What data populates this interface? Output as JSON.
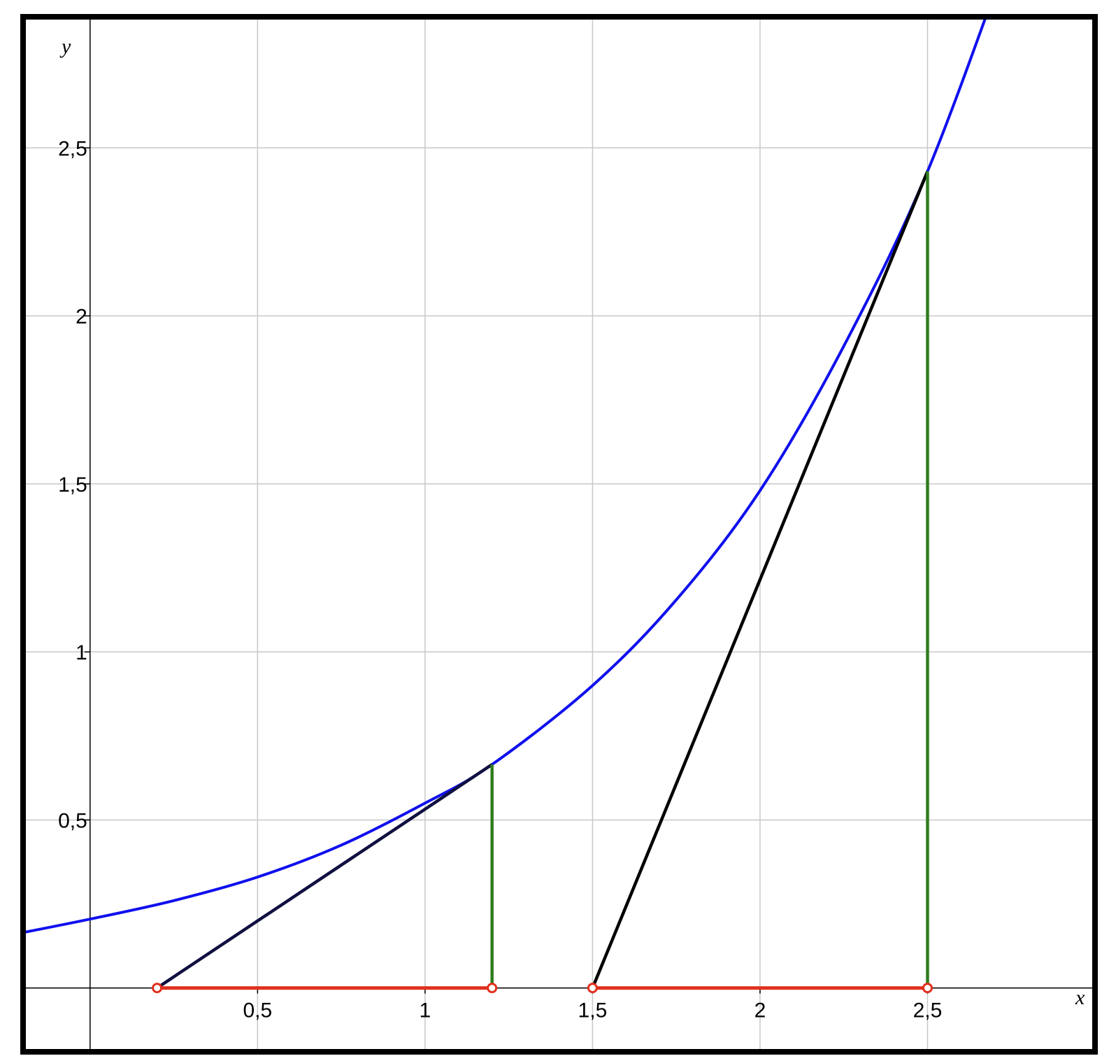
{
  "chart_data": {
    "type": "line",
    "title": "",
    "xlabel": "x",
    "ylabel": "y",
    "xlim": [
      -0.2,
      3.0
    ],
    "ylim": [
      -0.19,
      2.89
    ],
    "grid": true,
    "x_ticks": [
      0.5,
      1,
      1.5,
      2,
      2.5
    ],
    "y_ticks": [
      0.5,
      1,
      1.5,
      2,
      2.5
    ],
    "x_tick_labels": [
      "0,5",
      "1",
      "1,5",
      "2",
      "2,5"
    ],
    "y_tick_labels": [
      "0,5",
      "1",
      "1,5",
      "2",
      "2,5"
    ],
    "colors": {
      "curve": "#1010ee",
      "tangent_1": "#101040",
      "tangent_2": "#000000",
      "verticals": "#2e7d1e",
      "segments": "#e0301e",
      "grid": "#c8c8c8",
      "frame": "#000000"
    },
    "curve": {
      "x": [
        -0.2,
        0.0,
        0.25,
        0.5,
        0.75,
        1.0,
        1.2,
        1.5,
        1.75,
        2.0,
        2.25,
        2.5,
        2.75
      ],
      "y": [
        0.165,
        0.205,
        0.26,
        0.33,
        0.425,
        0.55,
        0.665,
        0.9,
        1.155,
        1.48,
        1.91,
        2.43,
        3.1
      ]
    },
    "tangents": [
      {
        "x": [
          0.2,
          1.2
        ],
        "y": [
          0.0,
          0.665
        ]
      },
      {
        "x": [
          1.5,
          2.5
        ],
        "y": [
          0.0,
          2.43
        ]
      }
    ],
    "verticals": [
      {
        "x": [
          1.2,
          1.2
        ],
        "y": [
          0.0,
          0.665
        ]
      },
      {
        "x": [
          2.5,
          2.5
        ],
        "y": [
          0.0,
          2.43
        ]
      }
    ],
    "segments": [
      {
        "x": [
          0.2,
          1.2
        ],
        "y": [
          0.0,
          0.0
        ]
      },
      {
        "x": [
          1.5,
          2.5
        ],
        "y": [
          0.0,
          0.0
        ]
      }
    ],
    "points": [
      {
        "x": 0.2,
        "y": 0.0
      },
      {
        "x": 1.2,
        "y": 0.0
      },
      {
        "x": 1.5,
        "y": 0.0
      },
      {
        "x": 2.5,
        "y": 0.0
      }
    ]
  }
}
